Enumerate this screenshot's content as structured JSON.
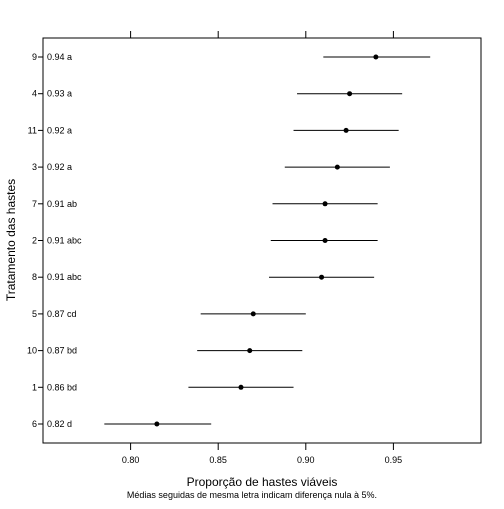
{
  "chart_data": {
    "type": "scatter",
    "subtype": "interval-dotplot",
    "title": "",
    "xlabel": "Proporção de hastes viáveis",
    "ylabel": "Tratamento das hastes",
    "footnote": "Médias seguidas de mesma letra indicam diferença nula à 5%.",
    "xlim": [
      0.75,
      1.0
    ],
    "xticks": [
      0.8,
      0.85,
      0.9,
      0.95
    ],
    "xtick_labels": [
      "0.80",
      "0.85",
      "0.90",
      "0.95"
    ],
    "grid": false,
    "points": [
      {
        "category": "9",
        "label": "0.94 a",
        "mean": 0.94,
        "lower": 0.91,
        "upper": 0.971
      },
      {
        "category": "4",
        "label": "0.93 a",
        "mean": 0.925,
        "lower": 0.895,
        "upper": 0.955
      },
      {
        "category": "11",
        "label": "0.92 a",
        "mean": 0.923,
        "lower": 0.893,
        "upper": 0.953
      },
      {
        "category": "3",
        "label": "0.92 a",
        "mean": 0.918,
        "lower": 0.888,
        "upper": 0.948
      },
      {
        "category": "7",
        "label": "0.91 ab",
        "mean": 0.911,
        "lower": 0.881,
        "upper": 0.941
      },
      {
        "category": "2",
        "label": "0.91 abc",
        "mean": 0.911,
        "lower": 0.88,
        "upper": 0.941
      },
      {
        "category": "8",
        "label": "0.91 abc",
        "mean": 0.909,
        "lower": 0.879,
        "upper": 0.939
      },
      {
        "category": "5",
        "label": "0.87 cd",
        "mean": 0.87,
        "lower": 0.84,
        "upper": 0.9
      },
      {
        "category": "10",
        "label": "0.87 bd",
        "mean": 0.868,
        "lower": 0.838,
        "upper": 0.898
      },
      {
        "category": "1",
        "label": "0.86 bd",
        "mean": 0.863,
        "lower": 0.833,
        "upper": 0.893
      },
      {
        "category": "6",
        "label": "0.82 d",
        "mean": 0.815,
        "lower": 0.785,
        "upper": 0.846
      }
    ]
  }
}
